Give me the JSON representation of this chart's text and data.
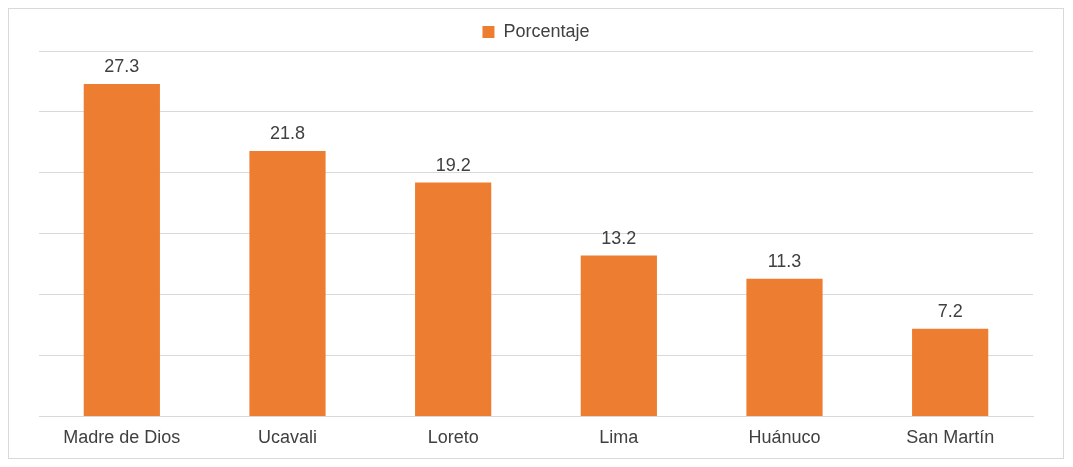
{
  "chart_data": {
    "type": "bar",
    "categories": [
      "Madre de Dios",
      "Ucavali",
      "Loreto",
      "Lima",
      "Huánuco",
      "San Martín"
    ],
    "series": [
      {
        "name": "Porcentaje",
        "color": "#ed7d31",
        "values": [
          27.3,
          21.8,
          19.2,
          13.2,
          11.3,
          7.2
        ]
      }
    ],
    "ylim": [
      0,
      30
    ],
    "yticks": [
      {
        "value": 0,
        "label": null
      },
      {
        "value": 5,
        "label": null
      },
      {
        "value": 10,
        "label": null
      },
      {
        "value": 15,
        "label": null
      },
      {
        "value": 20,
        "label": null
      },
      {
        "value": 25,
        "label": null
      },
      {
        "value": 30,
        "label": null
      }
    ],
    "tick_labels": "x",
    "grid": "y",
    "legend": "top",
    "data_labels": true
  }
}
